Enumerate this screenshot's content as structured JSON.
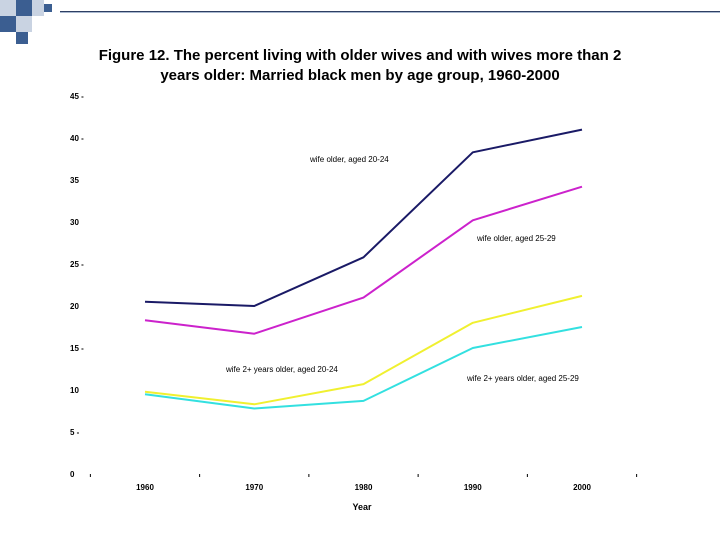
{
  "colors": {
    "background": "#ffffff",
    "decoration_blue": "#3b5e91",
    "decoration_light": "#c9d3e2",
    "rule_dark": "#2e3f63",
    "rule_light": "#a9b8cf"
  },
  "chart_data": {
    "type": "line",
    "title_line1": "Figure 12. The percent living with older wives and with wives more than 2",
    "title_line2": "years older: Married black men by age group, 1960-2000",
    "xlabel": "Year",
    "ylabel": "",
    "x": [
      1960,
      1970,
      1980,
      1990,
      2000
    ],
    "x_tick_labels": [
      "1960",
      "1970",
      "1980",
      "1990",
      "2000"
    ],
    "ylim": [
      0,
      45
    ],
    "y_ticks": [
      0,
      5,
      10,
      15,
      20,
      25,
      30,
      35,
      40,
      45
    ],
    "y_tick_labels": [
      "0",
      "5 -",
      "10",
      "15 -",
      "20",
      "25 -",
      "30",
      "35",
      "40 -",
      "45 -"
    ],
    "grid": false,
    "legend": "none",
    "series": [
      {
        "name": "wife older, aged 20-24",
        "color": "#1a1a66",
        "values": [
          20.5,
          20.0,
          25.8,
          38.3,
          41.0
        ]
      },
      {
        "name": "wife older, aged 25-29",
        "color": "#cc22cc",
        "values": [
          18.3,
          16.7,
          21.0,
          30.2,
          34.2
        ]
      },
      {
        "name": "wife 2+ years older, aged 20-24",
        "color": "#f0f030",
        "values": [
          9.8,
          8.3,
          10.7,
          18.0,
          21.2
        ]
      },
      {
        "name": "wife 2+ years older, aged 25-29",
        "color": "#33e0e0",
        "values": [
          9.5,
          7.8,
          8.7,
          15.0,
          17.5
        ]
      }
    ]
  }
}
